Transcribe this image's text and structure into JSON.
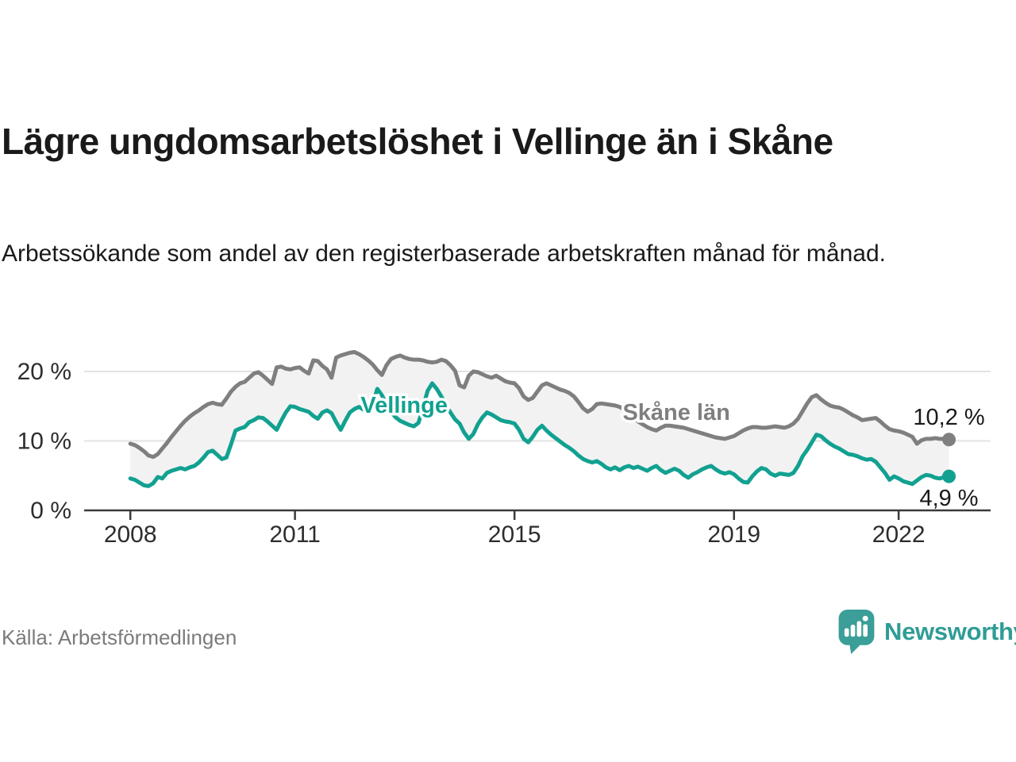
{
  "header": {
    "title": "Lägre ungdomsarbetslöshet i Vellinge än i Skåne",
    "subtitle": "Arbetssökande som andel av den registerbaserade arbetskraften månad för månad."
  },
  "footer": {
    "source": "Källa: Arbetsförmedlingen",
    "brand": "Newsworthy"
  },
  "colors": {
    "vellinge": "#12a191",
    "skane": "#7f7f7f",
    "band_fill": "#f2f2f2",
    "grid": "#e3e3e3",
    "axis": "#3a3a3a",
    "tick_label": "#2d2d2d",
    "value_label": "#1a1a1a",
    "brand_teal": "#2f9c95",
    "logo_bubble": "#3b9e98"
  },
  "chart_data": {
    "type": "line",
    "unit": "%",
    "start_year": 2008,
    "frequency": "monthly",
    "grid": true,
    "ylim": [
      0,
      24
    ],
    "y_ticks": [
      {
        "value": 0,
        "label": "0 %"
      },
      {
        "value": 10,
        "label": "10 %"
      },
      {
        "value": 20,
        "label": "20 %"
      }
    ],
    "x_ticks": [
      {
        "year": 2008,
        "label": "2008"
      },
      {
        "year": 2011,
        "label": "2011"
      },
      {
        "year": 2015,
        "label": "2015"
      },
      {
        "year": 2019,
        "label": "2019"
      },
      {
        "year": 2022,
        "label": "2022"
      }
    ],
    "series": [
      {
        "name": "Skåne län",
        "color": "#7f7f7f",
        "end_label": "10,2 %",
        "end_value": 10.2,
        "label_anchor": {
          "x_year": 2017.95,
          "y_pct": 14.2
        },
        "values": [
          9.6,
          9.4,
          9.0,
          8.5,
          7.9,
          7.7,
          8.1,
          8.9,
          9.7,
          10.6,
          11.4,
          12.2,
          12.9,
          13.5,
          14.0,
          14.4,
          14.9,
          15.3,
          15.5,
          15.3,
          15.2,
          16.1,
          17.1,
          17.8,
          18.3,
          18.5,
          19.1,
          19.7,
          19.9,
          19.4,
          18.8,
          18.2,
          20.6,
          20.7,
          20.4,
          20.3,
          20.5,
          20.6,
          20.1,
          19.7,
          21.6,
          21.5,
          20.8,
          20.3,
          19.1,
          22.0,
          22.3,
          22.5,
          22.7,
          22.8,
          22.5,
          22.1,
          21.6,
          21.0,
          20.2,
          19.5,
          20.9,
          21.8,
          22.1,
          22.3,
          22.0,
          21.8,
          21.7,
          21.7,
          21.6,
          21.4,
          21.3,
          21.4,
          21.7,
          21.5,
          20.9,
          20.1,
          18.0,
          17.7,
          19.4,
          20.0,
          19.9,
          19.6,
          19.3,
          19.1,
          19.4,
          19.0,
          18.6,
          18.4,
          18.3,
          17.6,
          16.4,
          15.9,
          16.2,
          17.1,
          18.0,
          18.3,
          18.0,
          17.7,
          17.4,
          17.2,
          16.9,
          16.4,
          15.6,
          14.7,
          14.2,
          14.6,
          15.3,
          15.4,
          15.3,
          15.2,
          15.1,
          14.9,
          14.5,
          14.0,
          13.4,
          12.8,
          12.4,
          12.0,
          11.7,
          11.5,
          11.9,
          12.2,
          12.2,
          12.1,
          12.0,
          11.9,
          11.7,
          11.5,
          11.3,
          11.1,
          10.9,
          10.7,
          10.5,
          10.4,
          10.3,
          10.5,
          10.7,
          11.1,
          11.5,
          11.8,
          12.0,
          12.0,
          11.9,
          11.9,
          12.0,
          12.1,
          12.0,
          11.9,
          12.1,
          12.5,
          13.2,
          14.3,
          15.4,
          16.3,
          16.6,
          16.0,
          15.5,
          15.1,
          14.9,
          14.8,
          14.5,
          14.1,
          13.7,
          13.4,
          13.0,
          13.1,
          13.2,
          13.3,
          12.8,
          12.2,
          11.7,
          11.5,
          11.4,
          11.2,
          10.9,
          10.6,
          9.6,
          10.1,
          10.3,
          10.3,
          10.4,
          10.3,
          10.3,
          10.2
        ]
      },
      {
        "name": "Vellinge",
        "color": "#12a191",
        "end_label": "4,9 %",
        "end_value": 4.9,
        "label_anchor": {
          "x_year": 2012.99,
          "y_pct": 15.2
        },
        "values": [
          4.6,
          4.4,
          4.0,
          3.6,
          3.5,
          3.9,
          4.8,
          4.6,
          5.4,
          5.7,
          5.9,
          6.1,
          5.9,
          6.2,
          6.4,
          6.9,
          7.6,
          8.4,
          8.6,
          8.0,
          7.4,
          7.6,
          9.5,
          11.5,
          11.8,
          12.0,
          12.7,
          13.0,
          13.4,
          13.3,
          12.8,
          12.2,
          11.6,
          12.9,
          14.1,
          15.0,
          14.9,
          14.6,
          14.4,
          14.2,
          13.6,
          13.2,
          14.1,
          14.4,
          14.0,
          12.7,
          11.6,
          12.9,
          14.1,
          14.6,
          14.9,
          14.5,
          14.3,
          15.3,
          17.5,
          16.6,
          15.2,
          14.2,
          13.4,
          12.9,
          12.6,
          12.3,
          12.1,
          12.6,
          14.8,
          17.2,
          18.3,
          17.5,
          16.4,
          15.2,
          14.1,
          13.1,
          12.5,
          11.2,
          10.3,
          11.0,
          12.4,
          13.4,
          14.1,
          13.8,
          13.4,
          13.0,
          12.8,
          12.7,
          12.5,
          11.6,
          10.3,
          9.8,
          10.6,
          11.6,
          12.2,
          11.5,
          10.9,
          10.4,
          9.9,
          9.4,
          9.0,
          8.5,
          7.9,
          7.4,
          7.1,
          6.9,
          7.1,
          6.7,
          6.2,
          5.9,
          6.2,
          5.8,
          6.2,
          6.4,
          6.1,
          6.3,
          6.0,
          5.7,
          6.1,
          6.4,
          5.8,
          5.4,
          5.7,
          6.0,
          5.7,
          5.1,
          4.7,
          5.2,
          5.5,
          5.9,
          6.2,
          6.4,
          5.9,
          5.5,
          5.3,
          5.5,
          5.2,
          4.6,
          4.1,
          4.0,
          4.9,
          5.6,
          6.1,
          5.9,
          5.3,
          5.0,
          5.3,
          5.2,
          5.1,
          5.4,
          6.4,
          7.8,
          8.7,
          9.8,
          10.9,
          10.7,
          10.1,
          9.6,
          9.2,
          8.9,
          8.5,
          8.1,
          8.0,
          7.8,
          7.5,
          7.3,
          7.4,
          7.0,
          6.2,
          5.4,
          4.4,
          4.9,
          4.6,
          4.2,
          4.0,
          3.8,
          4.3,
          4.8,
          5.1,
          5.0,
          4.7,
          4.6,
          4.8,
          4.9
        ]
      }
    ]
  }
}
